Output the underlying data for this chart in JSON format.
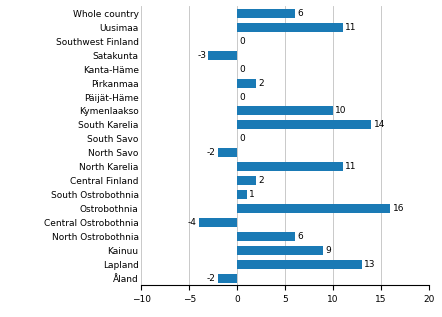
{
  "categories": [
    "Whole country",
    "Uusimaa",
    "Southwest Finland",
    "Satakunta",
    "Kanta-Häme",
    "Pirkanmaa",
    "Päijät-Häme",
    "Kymenlaakso",
    "South Karelia",
    "South Savo",
    "North Savo",
    "North Karelia",
    "Central Finland",
    "South Ostrobothnia",
    "Ostrobothnia",
    "Central Ostrobothnia",
    "North Ostrobothnia",
    "Kainuu",
    "Lapland",
    "Åland"
  ],
  "values": [
    6,
    11,
    0,
    -3,
    0,
    2,
    0,
    10,
    14,
    0,
    -2,
    11,
    2,
    1,
    16,
    -4,
    6,
    9,
    13,
    -2
  ],
  "bar_color": "#1a7ab5",
  "xlim": [
    -10,
    20
  ],
  "xticks": [
    -10,
    -5,
    0,
    5,
    10,
    15,
    20
  ],
  "label_fontsize": 6.5,
  "value_fontsize": 6.5,
  "grid_color": "#c0c0c0"
}
